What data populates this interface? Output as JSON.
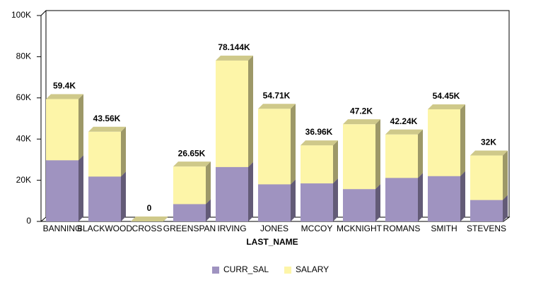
{
  "chart_data": {
    "type": "bar",
    "stacked": true,
    "x_label": "LAST_NAME",
    "categories": [
      "BANNING",
      "BLACKWOOD",
      "CROSS",
      "GREENSPAN",
      "IRVING",
      "JONES",
      "MCCOY",
      "MCKNIGHT",
      "ROMANS",
      "SMITH",
      "STEVENS"
    ],
    "series": [
      {
        "name": "CURR_SAL",
        "color": "#9f93c0",
        "values": [
          29700,
          21780,
          0,
          8400,
          26400,
          18000,
          18480,
          15700,
          21120,
          22000,
          10400
        ]
      },
      {
        "name": "SALARY",
        "color": "#fdf5a8",
        "values": [
          29700,
          21780,
          0,
          18250,
          51744,
          36710,
          18480,
          31500,
          21120,
          32450,
          21600
        ]
      }
    ],
    "total_labels": [
      "59.4K",
      "43.56K",
      "0",
      "26.65K",
      "78.144K",
      "54.71K",
      "36.96K",
      "47.2K",
      "42.24K",
      "54.45K",
      "32K"
    ],
    "ylim": [
      0,
      100000
    ],
    "yticks": [
      0,
      {
        "value": 20000,
        "label": "20K"
      },
      {
        "value": 40000,
        "label": "40K"
      },
      {
        "value": 60000,
        "label": "60K"
      },
      {
        "value": 80000,
        "label": "80K"
      },
      {
        "value": 100000,
        "label": "100K"
      }
    ],
    "grid": false,
    "legend": "bottom"
  }
}
